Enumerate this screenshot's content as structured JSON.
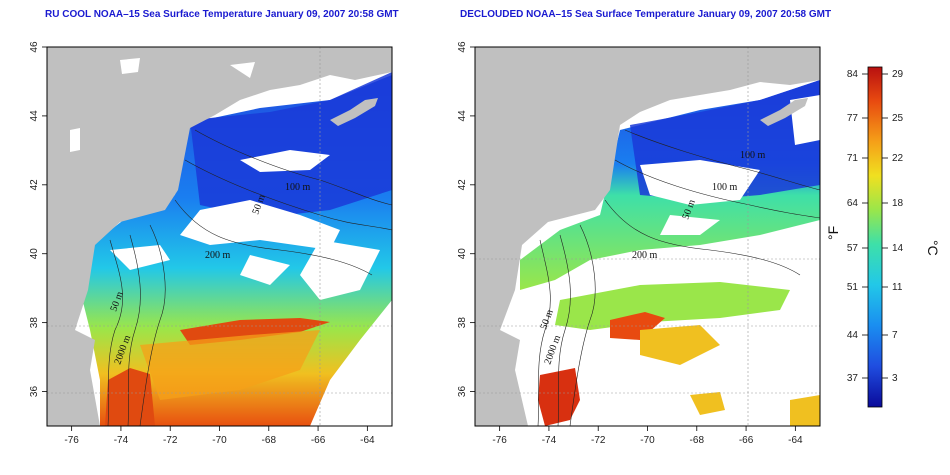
{
  "titles": {
    "left": "RU COOL NOAA–15 Sea Surface Temperature January 09, 2007 20:58 GMT",
    "right": "DECLOUDED NOAA–15 Sea Surface Temperature January 09, 2007 20:58 GMT"
  },
  "axes": {
    "x_ticks": [
      "-76",
      "-74",
      "-72",
      "-70",
      "-68",
      "-66",
      "-64"
    ],
    "y_ticks": [
      "36",
      "38",
      "40",
      "42",
      "44",
      "46"
    ],
    "xlim": [
      -77,
      -63
    ],
    "ylim": [
      35,
      46
    ]
  },
  "contour_labels": {
    "left": [
      "100 m",
      "50 m",
      "200 m",
      "50 m",
      "2000 m"
    ],
    "right": [
      "100 m",
      "100 m",
      "50 m",
      "200 m",
      "50 m",
      "2000 m"
    ]
  },
  "colorbar": {
    "fahrenheit_ticks": [
      "84",
      "77",
      "71",
      "64",
      "57",
      "51",
      "44",
      "37"
    ],
    "celsius_ticks": [
      "29",
      "25",
      "22",
      "18",
      "14",
      "11",
      "7",
      "3"
    ],
    "fahrenheit_unit": "°F",
    "celsius_unit": "°C",
    "colors": [
      "#0a0a9a",
      "#1f4de0",
      "#1a8ef0",
      "#22c8e8",
      "#3ee0a8",
      "#9ae64a",
      "#f0e020",
      "#f5a018",
      "#e84a10",
      "#b81010"
    ]
  },
  "colors": {
    "land": "#c0c0c0",
    "cloud": "#ffffff",
    "title": "#1a1ad0"
  }
}
